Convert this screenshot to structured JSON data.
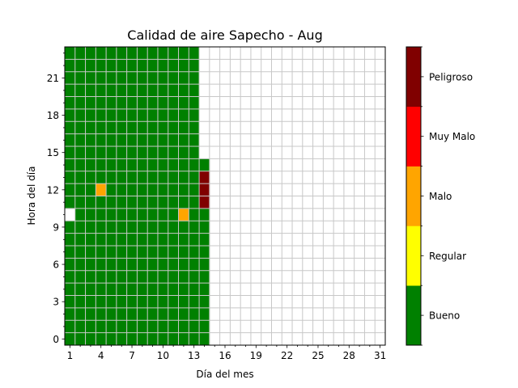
{
  "chart_data": {
    "type": "heatmap",
    "title": "Calidad de aire Sapecho - Aug",
    "xlabel": "Día del mes",
    "ylabel": "Hora del día",
    "x_range": [
      1,
      31
    ],
    "y_range": [
      0,
      23
    ],
    "x_ticks": [
      1,
      4,
      7,
      10,
      13,
      16,
      19,
      22,
      25,
      28,
      31
    ],
    "y_ticks": [
      0,
      3,
      6,
      9,
      12,
      15,
      18,
      21
    ],
    "grid": true,
    "categories": [
      "Bueno",
      "Regular",
      "Malo",
      "Muy Malo",
      "Peligroso"
    ],
    "colors": {
      "Bueno": "#008000",
      "Regular": "#ffff00",
      "Malo": "#ffa500",
      "Muy Malo": "#ff0000",
      "Peligroso": "#800000",
      "missing": "#ffffff",
      "grid": "#c8c8c8"
    },
    "default_category": "Bueno",
    "complete_days": [
      1,
      13
    ],
    "partial_day": {
      "day": 14,
      "hours": [
        0,
        14
      ]
    },
    "missing_cells": [
      {
        "day": 1,
        "hour": 10
      }
    ],
    "exceptions": [
      {
        "day": 4,
        "hour": 12,
        "category": "Malo"
      },
      {
        "day": 12,
        "hour": 10,
        "category": "Malo"
      },
      {
        "day": 14,
        "hour": 11,
        "category": "Peligroso"
      },
      {
        "day": 14,
        "hour": 12,
        "category": "Peligroso"
      },
      {
        "day": 14,
        "hour": 13,
        "category": "Peligroso"
      }
    ]
  }
}
